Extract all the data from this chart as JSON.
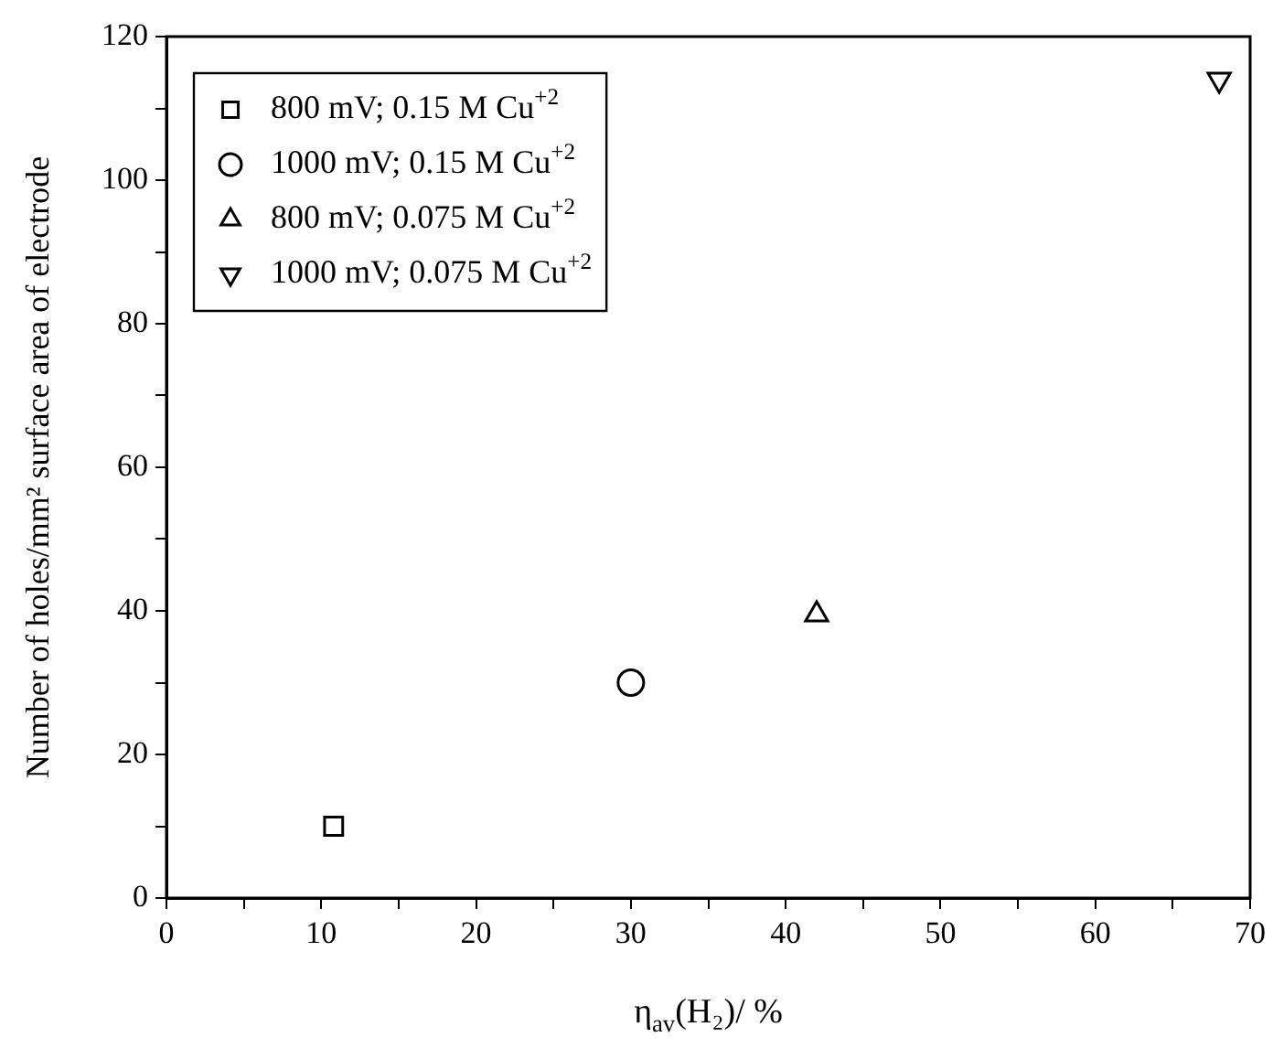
{
  "chart_data": {
    "type": "scatter",
    "xlabel": "η$_{av}$(H₂)/ %",
    "ylabel": "Number of holes/mm² surface area of electrode",
    "xlim": [
      0,
      70
    ],
    "xticks": [
      0,
      {
        "value": 5,
        "label": null
      },
      10,
      {
        "value": 15,
        "label": null
      },
      20,
      {
        "value": 25,
        "label": null
      },
      30,
      {
        "value": 35,
        "label": null
      },
      40,
      {
        "value": 45,
        "label": null
      },
      50,
      {
        "value": 55,
        "label": null
      },
      60,
      {
        "value": 65,
        "label": null
      },
      70
    ],
    "ylim": [
      0,
      120
    ],
    "yticks": [
      0,
      {
        "value": 10,
        "label": null
      },
      20,
      {
        "value": 30,
        "label": null
      },
      40,
      {
        "value": 50,
        "label": null
      },
      60,
      {
        "value": 70,
        "label": null
      },
      80,
      {
        "value": 90,
        "label": null
      },
      100,
      {
        "value": 110,
        "label": null
      },
      120
    ],
    "grid": false,
    "legend": "top left",
    "series": [
      {
        "name": "800 mV; 0.15 M Cu$^{+2}$",
        "color": "#000000",
        "marker": "square",
        "x": [
          10.8
        ],
        "values": [
          10
        ]
      },
      {
        "name": "1000 mV; 0.15 M Cu$^{+2}$",
        "color": "#000000",
        "marker": "circle",
        "x": [
          30
        ],
        "values": [
          30
        ]
      },
      {
        "name": "800 mV; 0.075 M Cu$^{+2}$",
        "color": "#000000",
        "marker": "triangle",
        "x": [
          42
        ],
        "values": [
          39.5
        ]
      },
      {
        "name": "1000 mV; 0.075 M Cu$^{+2}$",
        "color": "#000000",
        "marker": "triangle_down",
        "x": [
          68
        ],
        "values": [
          114
        ]
      }
    ]
  }
}
